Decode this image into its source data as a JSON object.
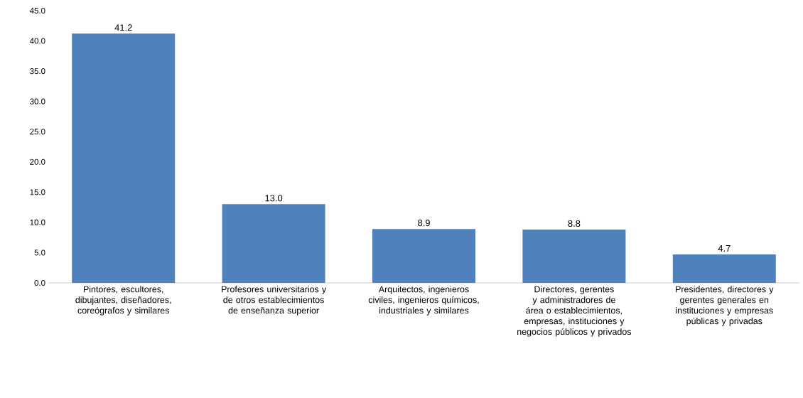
{
  "chart_data": {
    "type": "bar",
    "categories": [
      "Pintores, escultores, dibujantes, diseñadores, coreógrafos y  similares",
      "Profesores universitarios y de otros establecimientos de enseñanza superior",
      "Arquitectos, ingenieros civiles, ingenieros químicos, industriales y similares",
      "Directores, gerentes y administradores de área o establecimientos, empresas, instituciones y negocios públicos y privados",
      "Presidentes, directores y gerentes generales en instituciones y empresas públicas y privadas"
    ],
    "values": [
      41.2,
      13.0,
      8.9,
      8.8,
      4.7
    ],
    "value_labels": [
      "41.2",
      "13.0",
      "8.9",
      "8.8",
      "4.7"
    ],
    "color": "#4f81bd",
    "ylim": [
      0,
      45
    ],
    "yticks": [
      {
        "value": 0,
        "label": "0.0"
      },
      {
        "value": 5,
        "label": "5.0"
      },
      {
        "value": 10,
        "label": "10.0"
      },
      {
        "value": 15,
        "label": "15.0"
      },
      {
        "value": 20,
        "label": "20.0"
      },
      {
        "value": 25,
        "label": "25.0"
      },
      {
        "value": 30,
        "label": "30.0"
      },
      {
        "value": 35,
        "label": "35.0"
      },
      {
        "value": 40,
        "label": "40.0"
      },
      {
        "value": 45,
        "label": "45.0"
      }
    ],
    "grid": false
  }
}
